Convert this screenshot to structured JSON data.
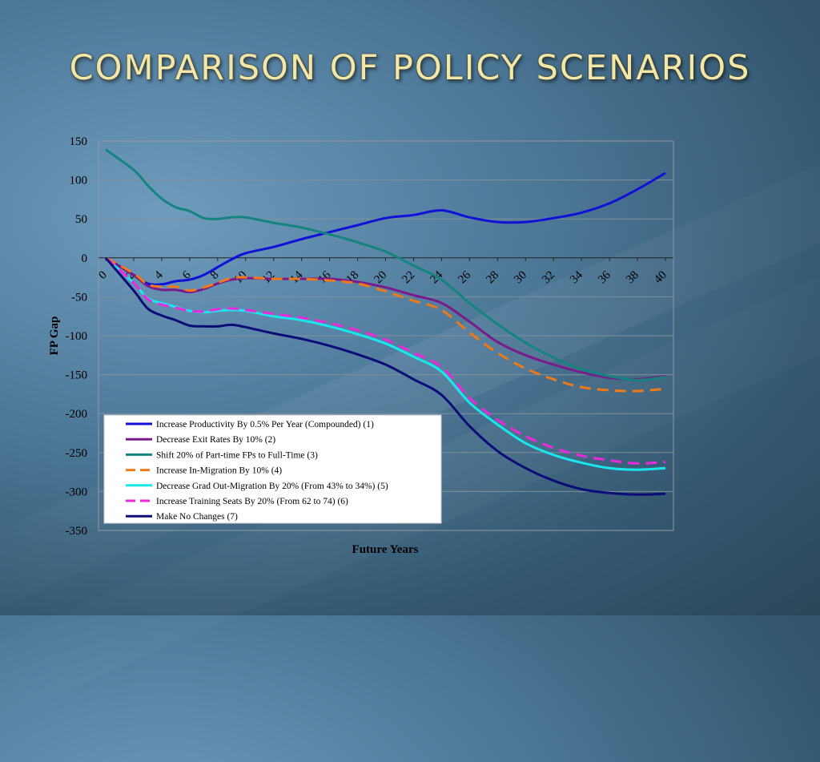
{
  "slide": {
    "title": "COMPARISON OF POLICY SCENARIOS"
  },
  "chart_data": {
    "type": "line",
    "title": "",
    "xlabel": "Future Years",
    "ylabel": "FP Gap",
    "xlim": [
      0,
      40
    ],
    "ylim": [
      -350,
      150
    ],
    "yticks": [
      150,
      100,
      50,
      0,
      -50,
      -100,
      -150,
      -200,
      -250,
      -300,
      -350
    ],
    "xticks": [
      0,
      2,
      4,
      6,
      8,
      10,
      12,
      14,
      16,
      18,
      20,
      22,
      24,
      26,
      28,
      30,
      32,
      34,
      36,
      38,
      40
    ],
    "grid": "horizontal",
    "legend_position": "bottom-left",
    "x": [
      0,
      2,
      3,
      4,
      5,
      6,
      7,
      8,
      9,
      10,
      12,
      14,
      16,
      18,
      20,
      22,
      24,
      26,
      28,
      30,
      32,
      34,
      36,
      38,
      40
    ],
    "series": [
      {
        "name": "Increase Productivity By 0.5% Per Year (Compounded) (1)",
        "color": "#1010d8",
        "dash": "solid",
        "values": [
          0,
          -22,
          -33,
          -34,
          -30,
          -28,
          -22,
          -12,
          -2,
          6,
          14,
          24,
          33,
          42,
          51,
          55,
          61,
          52,
          46,
          46,
          51,
          58,
          70,
          88,
          109
        ]
      },
      {
        "name": "Decrease Exit Rates By 10% (2)",
        "color": "#7a1a8c",
        "dash": "solid",
        "values": [
          0,
          -22,
          -36,
          -41,
          -41,
          -44,
          -40,
          -33,
          -28,
          -26,
          -27,
          -27,
          -27,
          -31,
          -38,
          -48,
          -58,
          -82,
          -108,
          -125,
          -137,
          -147,
          -154,
          -156,
          -152
        ]
      },
      {
        "name": "Shift 20% of Part-time FPs to Full-Time (3)",
        "color": "#14847e",
        "dash": "solid",
        "values": [
          139,
          113,
          93,
          76,
          65,
          60,
          51,
          50,
          52,
          52,
          45,
          39,
          30,
          20,
          8,
          -10,
          -28,
          -58,
          -85,
          -109,
          -128,
          -143,
          -152,
          -157,
          -153
        ]
      },
      {
        "name": "Increase In-Migration By 10% (4)",
        "color": "#f07a18",
        "dash": "dash",
        "values": [
          0,
          -20,
          -34,
          -37,
          -37,
          -42,
          -38,
          -32,
          -26,
          -25,
          -27,
          -27,
          -29,
          -33,
          -43,
          -55,
          -67,
          -96,
          -122,
          -142,
          -156,
          -166,
          -170,
          -171,
          -168
        ]
      },
      {
        "name": "Decrease Grad Out-Migration By 20% (From 43% to 34%) (5)",
        "color": "#18e8ec",
        "dash": "solid",
        "values": [
          0,
          -32,
          -52,
          -58,
          -63,
          -68,
          -70,
          -68,
          -67,
          -68,
          -75,
          -80,
          -88,
          -98,
          -110,
          -127,
          -146,
          -186,
          -214,
          -238,
          -253,
          -263,
          -270,
          -272,
          -270
        ]
      },
      {
        "name": "Increase Training Seats By 20% (From 62 to 74) (6)",
        "color": "#ec28dc",
        "dash": "dash",
        "values": [
          0,
          -32,
          -53,
          -60,
          -64,
          -68,
          -69,
          -66,
          -65,
          -67,
          -72,
          -77,
          -84,
          -93,
          -105,
          -122,
          -140,
          -180,
          -208,
          -229,
          -244,
          -254,
          -260,
          -264,
          -262
        ]
      },
      {
        "name": "Make No Changes (7)",
        "color": "#0c0c78",
        "dash": "solid",
        "values": [
          0,
          -42,
          -65,
          -74,
          -80,
          -87,
          -88,
          -88,
          -86,
          -89,
          -97,
          -104,
          -113,
          -124,
          -137,
          -156,
          -176,
          -216,
          -248,
          -270,
          -286,
          -297,
          -302,
          -304,
          -303
        ]
      }
    ]
  }
}
